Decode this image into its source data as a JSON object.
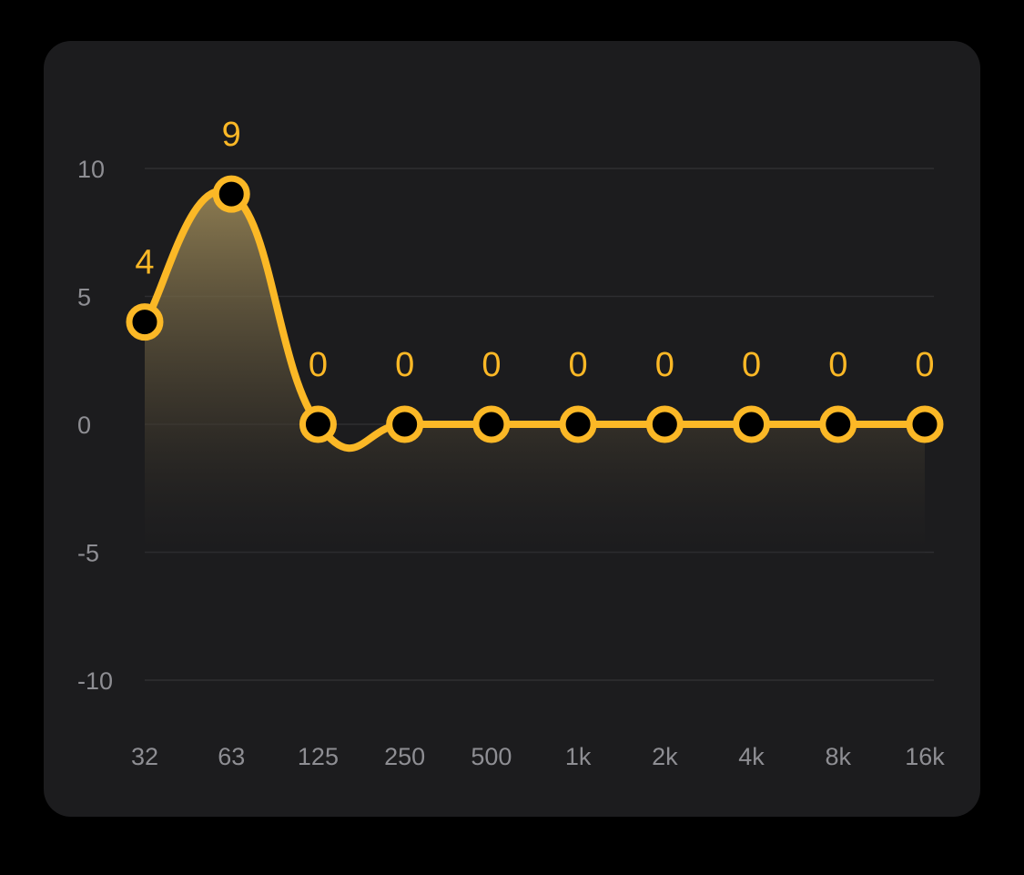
{
  "chart_data": {
    "type": "line",
    "categories": [
      "32",
      "63",
      "125",
      "250",
      "500",
      "1k",
      "2k",
      "4k",
      "8k",
      "16k"
    ],
    "values": [
      4,
      9,
      0,
      0,
      0,
      0,
      0,
      0,
      0,
      0
    ],
    "value_labels": [
      "4",
      "9",
      "0",
      "0",
      "0",
      "0",
      "0",
      "0",
      "0",
      "0"
    ],
    "y_ticks": [
      10,
      5,
      0,
      -5,
      -10
    ],
    "y_tick_labels": [
      "10",
      "5",
      "0",
      "-5",
      "-10"
    ],
    "ylim": [
      -10,
      10
    ],
    "title": "",
    "xlabel": "",
    "ylabel": "",
    "grid": true,
    "legend": "none",
    "line_color": "#fbb826",
    "point_fill": "#000000",
    "background": "#1c1c1e"
  }
}
